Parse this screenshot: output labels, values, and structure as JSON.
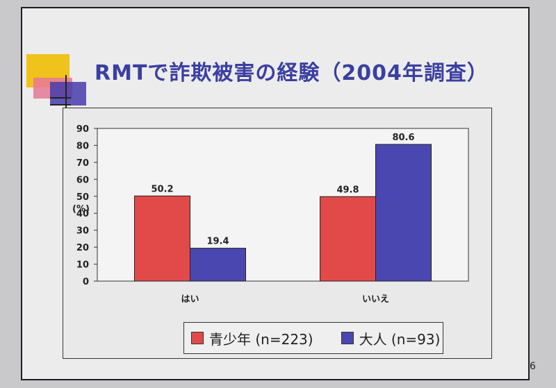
{
  "slide": {
    "title": "RMTで詐欺被害の経験（2004年調査）",
    "page_number": "6"
  },
  "colors": {
    "series_youth": "#e24a4a",
    "series_adult": "#4a48b0",
    "title_color": "#3b3fa0"
  },
  "chart_data": {
    "type": "bar",
    "categories": [
      "はい",
      "いいえ"
    ],
    "series": [
      {
        "name": "青少年 (n=223)",
        "values": [
          50.2,
          49.8
        ]
      },
      {
        "name": "大人 (n=93)",
        "values": [
          19.4,
          80.6
        ]
      }
    ],
    "ylabel": "(%)",
    "ylim": [
      0,
      90
    ],
    "yticks": [
      0,
      10,
      20,
      30,
      40,
      50,
      60,
      70,
      80,
      90
    ],
    "data_labels": [
      [
        "50.2",
        "49.8"
      ],
      [
        "19.4",
        "80.6"
      ]
    ],
    "grid": false,
    "legend_position": "bottom"
  },
  "legend": {
    "items": [
      {
        "label": "青少年 (n=223)"
      },
      {
        "label": "大人 (n=93)"
      }
    ]
  }
}
